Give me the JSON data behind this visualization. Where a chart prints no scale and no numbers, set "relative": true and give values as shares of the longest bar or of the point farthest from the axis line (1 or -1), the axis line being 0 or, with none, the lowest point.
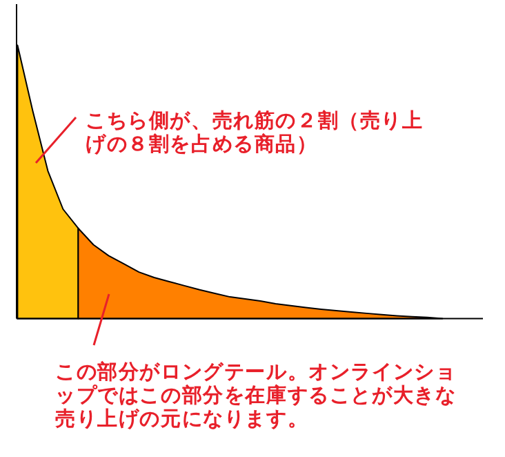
{
  "chart_data": {
    "type": "area",
    "relative": true,
    "categories": [
      null,
      null,
      null,
      null,
      null,
      null,
      null,
      null,
      null,
      null,
      null,
      null,
      null,
      null,
      null,
      null,
      null,
      null,
      null,
      null,
      null,
      null,
      null,
      null,
      null,
      null,
      null,
      null,
      null
    ],
    "series": [
      {
        "color": "#ffc20e",
        "values": [
          1.0,
          0.76,
          0.54,
          0.4,
          0.33,
          null,
          null,
          null,
          null,
          null,
          null,
          null,
          null,
          null,
          null,
          null,
          null,
          null,
          null,
          null,
          null,
          null,
          null,
          null,
          null,
          null,
          null,
          null,
          null
        ]
      },
      {
        "color": "#ff8000",
        "values": [
          null,
          null,
          null,
          null,
          0.33,
          0.27,
          0.23,
          0.2,
          0.17,
          0.15,
          0.135,
          0.12,
          0.105,
          0.092,
          0.079,
          0.072,
          0.064,
          0.054,
          0.047,
          0.04,
          0.034,
          0.029,
          0.024,
          0.019,
          0.014,
          0.01,
          0.007,
          0.004,
          0
        ]
      }
    ],
    "annotations": [
      "こちら側が、売れ筋の２割（売り上げの８割を占める商品）",
      "この部分がロングテール。オンラインショップではこの部分を在庫することが大きな売り上げの元になります。"
    ]
  }
}
